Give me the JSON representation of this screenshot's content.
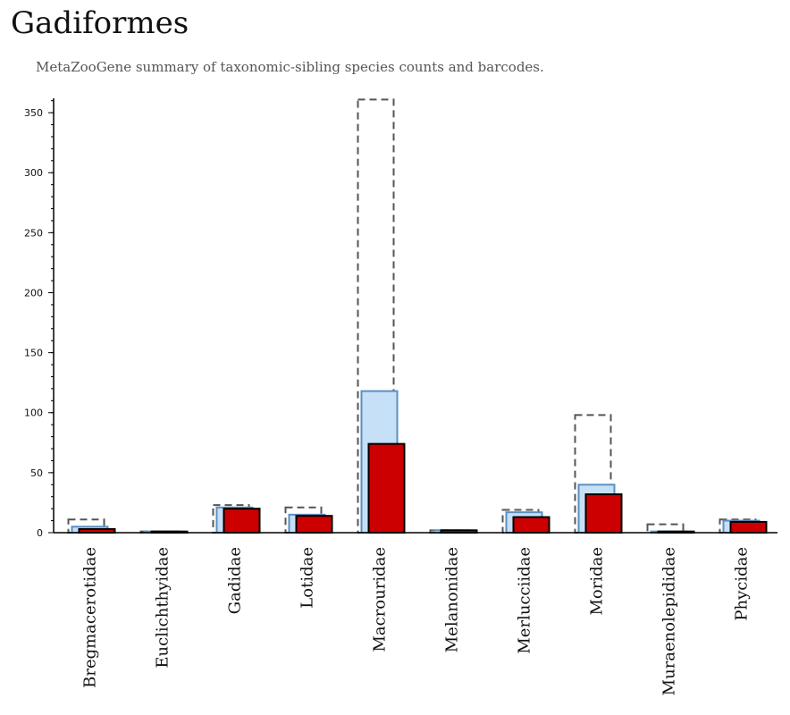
{
  "title": "Gadiformes",
  "subtitle": "MetaZooGene summary of taxonomic-sibling species counts and barcodes.",
  "colors": {
    "outline_dashed": "#555555",
    "light_fill": "#c6e0f8",
    "light_stroke": "#5b8fc0",
    "red_fill": "#cc0000",
    "red_stroke": "#000000",
    "axis": "#000000"
  },
  "chart_data": {
    "type": "bar",
    "title": "Gadiformes",
    "subtitle": "MetaZooGene summary of taxonomic-sibling species counts and barcodes.",
    "categories": [
      "Bregmacerotidae",
      "Euclichthyidae",
      "Gadidae",
      "Lotidae",
      "Macrouridae",
      "Melanonidae",
      "Merlucciidae",
      "Moridae",
      "Muraenolepididae",
      "Phycidae"
    ],
    "series": [
      {
        "style": "dashed-outline",
        "values": [
          11,
          1,
          23,
          21,
          361,
          2,
          19,
          98,
          7,
          11
        ]
      },
      {
        "style": "light-blue",
        "values": [
          5,
          1,
          21,
          15,
          118,
          2,
          17,
          40,
          1,
          10
        ]
      },
      {
        "style": "red",
        "values": [
          3,
          1,
          20,
          14,
          74,
          2,
          13,
          32,
          1,
          9
        ]
      }
    ],
    "yticks": [
      0,
      50,
      100,
      150,
      200,
      250,
      300,
      350
    ],
    "ylim": [
      0,
      362
    ],
    "xlabel": "",
    "ylabel": "",
    "grid": false
  }
}
